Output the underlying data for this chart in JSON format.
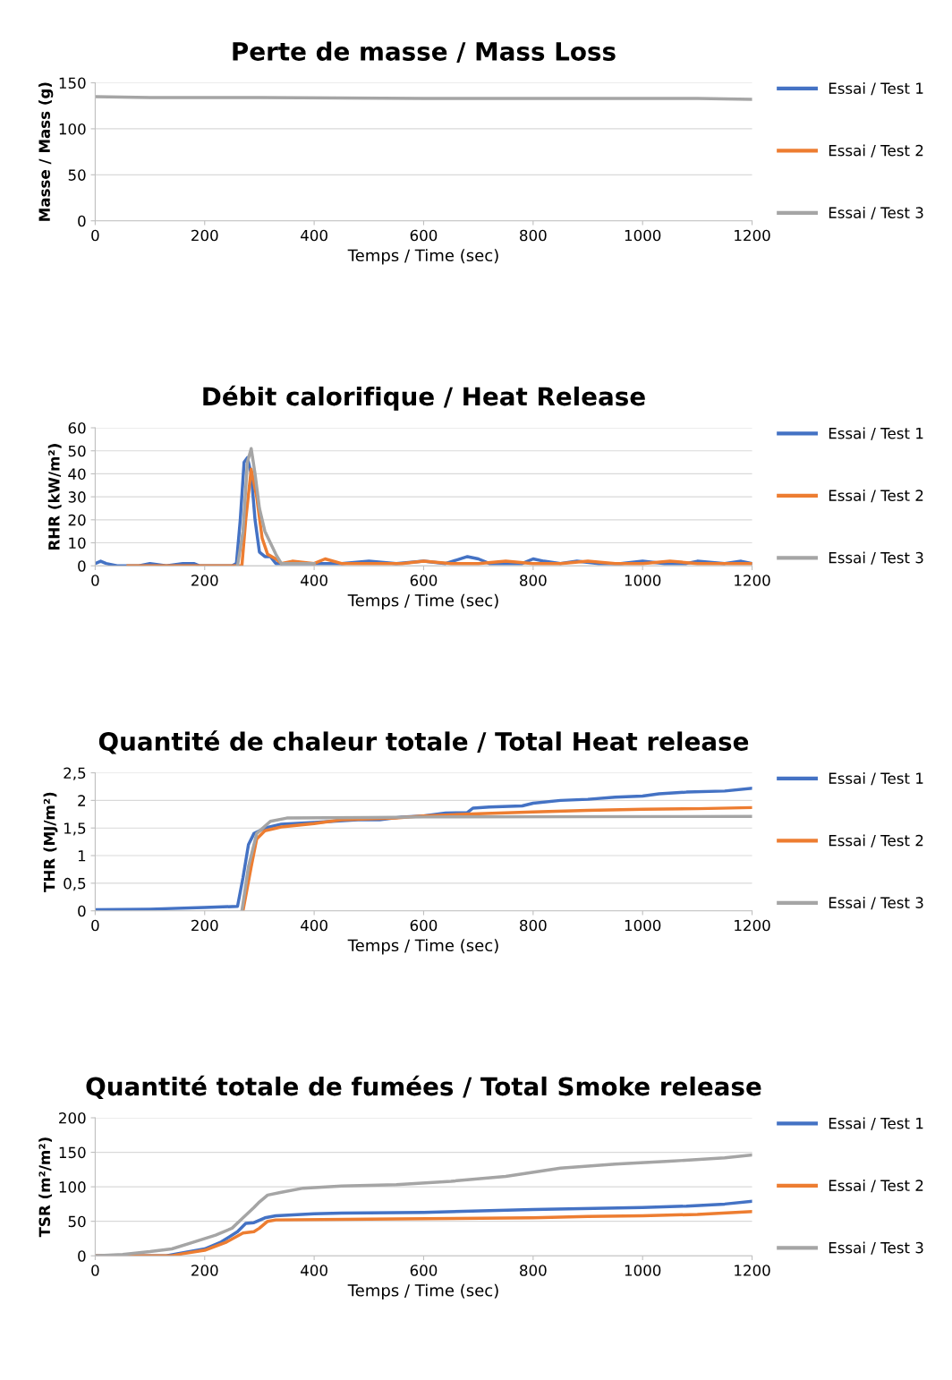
{
  "chart_data": [
    {
      "type": "line",
      "title": "Perte de masse / Mass Loss",
      "xlabel": "Temps / Time (sec)",
      "ylabel": "Masse / Mass (g)",
      "xlim": [
        0,
        1200
      ],
      "xticks": [
        0,
        200,
        400,
        600,
        800,
        1000,
        1200
      ],
      "ylim": [
        0,
        150
      ],
      "yticks": [
        0,
        50,
        100,
        150
      ],
      "grid": "y",
      "legend": "right",
      "series": [
        {
          "name": "Essai / Test 1",
          "color": "#4472c4"
        },
        {
          "name": "Essai / Test 2",
          "color": "#ed7d31"
        },
        {
          "name": "Essai / Test 3",
          "color": "#a5a5a5",
          "x": [
            0,
            100,
            300,
            600,
            900,
            1100,
            1200
          ],
          "values": [
            135,
            134,
            134,
            133,
            133,
            133,
            132
          ]
        }
      ]
    },
    {
      "type": "line",
      "title": "Débit calorifique / Heat Release",
      "xlabel": "Temps / Time (sec)",
      "ylabel": "RHR (kW/m²)",
      "xlim": [
        0,
        1200
      ],
      "xticks": [
        0,
        200,
        400,
        600,
        800,
        1000,
        1200
      ],
      "ylim": [
        0,
        60
      ],
      "yticks": [
        0,
        10,
        20,
        30,
        40,
        50,
        60
      ],
      "grid": "y",
      "legend": "right",
      "series": [
        {
          "name": "Essai / Test 1",
          "color": "#4472c4",
          "x": [
            0,
            10,
            20,
            40,
            80,
            100,
            130,
            160,
            180,
            190,
            250,
            258,
            265,
            272,
            278,
            285,
            292,
            300,
            310,
            320,
            330,
            400,
            450,
            500,
            550,
            600,
            640,
            680,
            700,
            720,
            780,
            800,
            820,
            850,
            880,
            920,
            960,
            1000,
            1040,
            1080,
            1100,
            1150,
            1180,
            1200
          ],
          "values": [
            1,
            2,
            1,
            0,
            0,
            1,
            0,
            1,
            1,
            0,
            0,
            1,
            20,
            45,
            47,
            40,
            20,
            6,
            4,
            4,
            1,
            1,
            1,
            2,
            1,
            2,
            1,
            4,
            3,
            1,
            1,
            3,
            2,
            1,
            2,
            1,
            1,
            2,
            1,
            1,
            2,
            1,
            2,
            1
          ]
        },
        {
          "name": "Essai / Test 2",
          "color": "#ed7d31",
          "x": [
            60,
            250,
            268,
            275,
            285,
            295,
            305,
            315,
            330,
            340,
            360,
            400,
            420,
            450,
            500,
            560,
            600,
            650,
            700,
            750,
            800,
            850,
            900,
            950,
            1000,
            1050,
            1100,
            1200
          ],
          "values": [
            0,
            0,
            0,
            20,
            42,
            30,
            12,
            5,
            3,
            1,
            2,
            1,
            3,
            1,
            1,
            1,
            2,
            1,
            1,
            2,
            1,
            1,
            2,
            1,
            1,
            2,
            1,
            1
          ]
        },
        {
          "name": "Essai / Test 3",
          "color": "#a5a5a5",
          "x": [
            260,
            270,
            278,
            285,
            292,
            300,
            310,
            320,
            330,
            340,
            400
          ],
          "values": [
            0,
            15,
            45,
            51,
            40,
            25,
            15,
            10,
            5,
            1,
            1
          ]
        }
      ]
    },
    {
      "type": "line",
      "title": "Quantité de chaleur totale / Total Heat release",
      "xlabel": "Temps / Time (sec)",
      "ylabel": "THR (MJ/m²)",
      "xlim": [
        0,
        1200
      ],
      "xticks": [
        0,
        200,
        400,
        600,
        800,
        1000,
        1200
      ],
      "ylim": [
        0,
        2.5
      ],
      "yticks": [
        0,
        {
          "value": 0.5,
          "label": "0,5"
        },
        1,
        {
          "value": 1.5,
          "label": "1,5"
        },
        2,
        {
          "value": 2.5,
          "label": "2,5"
        }
      ],
      "grid": "y",
      "legend": "right",
      "series": [
        {
          "name": "Essai / Test 1",
          "color": "#4472c4",
          "x": [
            0,
            100,
            200,
            260,
            270,
            280,
            290,
            310,
            340,
            400,
            480,
            520,
            560,
            600,
            640,
            680,
            690,
            720,
            780,
            800,
            850,
            900,
            950,
            1000,
            1030,
            1080,
            1150,
            1200
          ],
          "values": [
            0.02,
            0.03,
            0.06,
            0.08,
            0.6,
            1.2,
            1.4,
            1.5,
            1.57,
            1.6,
            1.65,
            1.65,
            1.7,
            1.72,
            1.77,
            1.78,
            1.86,
            1.88,
            1.9,
            1.95,
            2.0,
            2.02,
            2.06,
            2.08,
            2.12,
            2.15,
            2.17,
            2.22
          ]
        },
        {
          "name": "Essai / Test 2",
          "color": "#ed7d31",
          "x": [
            270,
            285,
            295,
            310,
            340,
            400,
            450,
            550,
            600,
            700,
            800,
            900,
            1000,
            1100,
            1200
          ],
          "values": [
            0,
            0.8,
            1.3,
            1.45,
            1.52,
            1.58,
            1.65,
            1.68,
            1.72,
            1.76,
            1.79,
            1.82,
            1.84,
            1.85,
            1.87
          ]
        },
        {
          "name": "Essai / Test 3",
          "color": "#a5a5a5",
          "x": [
            268,
            280,
            295,
            320,
            350,
            500,
            600,
            1200
          ],
          "values": [
            0,
            0.8,
            1.4,
            1.62,
            1.68,
            1.69,
            1.7,
            1.71
          ]
        }
      ]
    },
    {
      "type": "line",
      "title": "Quantité totale de fumées / Total Smoke release",
      "xlabel": "Temps / Time (sec)",
      "ylabel": "TSR (m²/m²)",
      "xlim": [
        0,
        1200
      ],
      "xticks": [
        0,
        200,
        400,
        600,
        800,
        1000,
        1200
      ],
      "ylim": [
        0,
        200
      ],
      "yticks": [
        0,
        50,
        100,
        150,
        200
      ],
      "grid": "y",
      "legend": "right",
      "series": [
        {
          "name": "Essai / Test 1",
          "color": "#4472c4",
          "x": [
            0,
            130,
            150,
            200,
            230,
            260,
            275,
            290,
            310,
            330,
            400,
            450,
            600,
            800,
            1000,
            1080,
            1150,
            1200
          ],
          "values": [
            0,
            0,
            3,
            10,
            20,
            35,
            47,
            48,
            55,
            58,
            61,
            62,
            63,
            67,
            70,
            72,
            75,
            79
          ]
        },
        {
          "name": "Essai / Test 2",
          "color": "#ed7d31",
          "x": [
            0,
            140,
            160,
            200,
            240,
            270,
            290,
            300,
            315,
            330,
            500,
            800,
            900,
            1000,
            1100,
            1200
          ],
          "values": [
            0,
            0,
            3,
            8,
            20,
            33,
            35,
            40,
            50,
            52,
            53,
            55,
            57,
            58,
            60,
            64
          ]
        },
        {
          "name": "Essai / Test 3",
          "color": "#a5a5a5",
          "x": [
            0,
            50,
            100,
            140,
            180,
            220,
            250,
            270,
            290,
            300,
            315,
            340,
            380,
            450,
            550,
            650,
            750,
            850,
            950,
            1050,
            1150,
            1200
          ],
          "values": [
            0,
            2,
            6,
            10,
            20,
            30,
            40,
            55,
            70,
            78,
            88,
            92,
            98,
            101,
            103,
            108,
            115,
            127,
            133,
            137,
            142,
            146
          ]
        }
      ]
    }
  ]
}
